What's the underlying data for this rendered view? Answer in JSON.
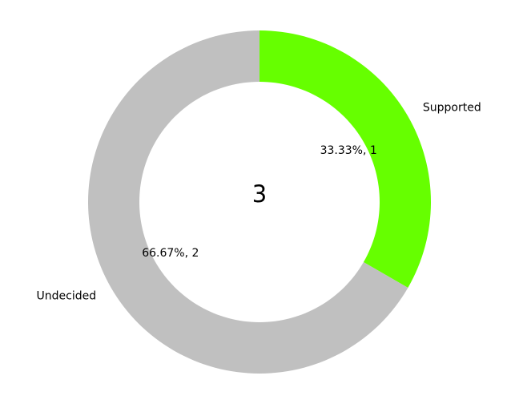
{
  "chart_data": {
    "type": "pie",
    "style": "donut",
    "center_label": "3",
    "slices": [
      {
        "name": "Supported",
        "value": 1,
        "percent_label": "33.33%, 1",
        "color": "#66ff00"
      },
      {
        "name": "Undecided",
        "value": 2,
        "percent_label": "66.67%, 2",
        "color": "#c0c0c0"
      }
    ],
    "start": "top",
    "direction": "clockwise",
    "legend": "none"
  }
}
